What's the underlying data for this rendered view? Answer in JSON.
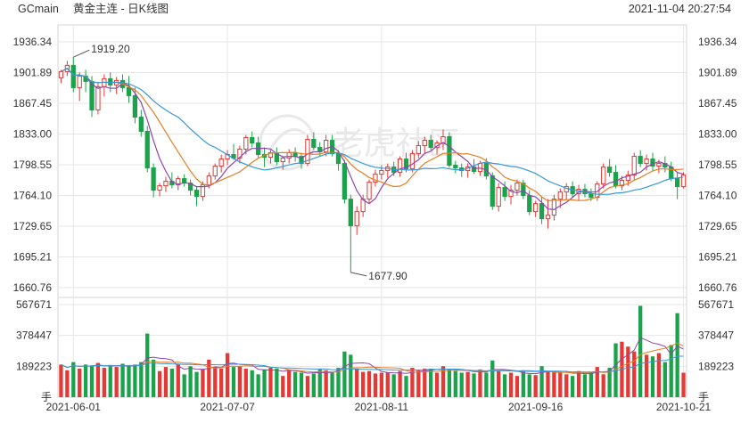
{
  "header": {
    "symbol": "GCmain",
    "title": "黄金主连 - 日K线图",
    "timestamp": "2021-11-04 20:27:54"
  },
  "watermark": "老虎社区",
  "colors": {
    "up": "#e53935",
    "down": "#1aa34a",
    "ma5": "#8e44ad",
    "ma10": "#e67e22",
    "ma20": "#3498db",
    "axis_text": "#333333",
    "grid": "#e6e6e6"
  },
  "chart_data": [
    {
      "type": "candlestick",
      "yaxis_labels": [
        "1936.34",
        "1901.89",
        "1867.45",
        "1833.00",
        "1798.55",
        "1764.10",
        "1729.65",
        "1695.21",
        "1660.76"
      ],
      "ylim": [
        1660.76,
        1936.34
      ],
      "annotations": {
        "high_label": "1919.20",
        "low_label": "1677.90"
      },
      "x_tick_labels": [
        "2021-06-01",
        "2021-07-07",
        "2021-08-11",
        "2021-09-16",
        "2021-10-21"
      ],
      "moving_averages": [
        "MA5",
        "MA10",
        "MA20"
      ],
      "ohlc": [
        [
          1896,
          1905,
          1890,
          1903
        ],
        [
          1903,
          1915,
          1898,
          1910
        ],
        [
          1910,
          1919.2,
          1880,
          1885
        ],
        [
          1885,
          1902,
          1870,
          1898
        ],
        [
          1898,
          1905,
          1880,
          1892
        ],
        [
          1892,
          1898,
          1852,
          1860
        ],
        [
          1860,
          1890,
          1855,
          1886
        ],
        [
          1886,
          1900,
          1875,
          1895
        ],
        [
          1895,
          1902,
          1880,
          1888
        ],
        [
          1888,
          1897,
          1878,
          1893
        ],
        [
          1893,
          1900,
          1880,
          1885
        ],
        [
          1885,
          1898,
          1868,
          1876
        ],
        [
          1876,
          1885,
          1845,
          1852
        ],
        [
          1852,
          1860,
          1830,
          1836
        ],
        [
          1836,
          1842,
          1790,
          1795
        ],
        [
          1795,
          1800,
          1762,
          1770
        ],
        [
          1770,
          1778,
          1763,
          1775
        ],
        [
          1775,
          1785,
          1768,
          1780
        ],
        [
          1780,
          1790,
          1772,
          1776
        ],
        [
          1776,
          1786,
          1770,
          1783
        ],
        [
          1783,
          1788,
          1774,
          1778
        ],
        [
          1778,
          1782,
          1764,
          1770
        ],
        [
          1770,
          1774,
          1752,
          1763
        ],
        [
          1763,
          1780,
          1758,
          1776
        ],
        [
          1776,
          1790,
          1772,
          1786
        ],
        [
          1786,
          1800,
          1782,
          1797
        ],
        [
          1797,
          1810,
          1790,
          1805
        ],
        [
          1805,
          1815,
          1798,
          1810
        ],
        [
          1810,
          1822,
          1804,
          1806
        ],
        [
          1806,
          1820,
          1800,
          1816
        ],
        [
          1816,
          1832,
          1810,
          1829
        ],
        [
          1829,
          1836,
          1818,
          1823
        ],
        [
          1823,
          1830,
          1806,
          1810
        ],
        [
          1810,
          1818,
          1796,
          1807
        ],
        [
          1807,
          1815,
          1800,
          1812
        ],
        [
          1812,
          1818,
          1798,
          1802
        ],
        [
          1802,
          1808,
          1793,
          1806
        ],
        [
          1806,
          1816,
          1800,
          1812
        ],
        [
          1812,
          1818,
          1802,
          1808
        ],
        [
          1808,
          1812,
          1794,
          1800
        ],
        [
          1800,
          1832,
          1797,
          1827
        ],
        [
          1827,
          1835,
          1815,
          1818
        ],
        [
          1818,
          1824,
          1808,
          1813
        ],
        [
          1813,
          1832,
          1808,
          1826
        ],
        [
          1826,
          1832,
          1808,
          1811
        ],
        [
          1811,
          1815,
          1792,
          1800
        ],
        [
          1800,
          1804,
          1755,
          1760
        ],
        [
          1760,
          1765,
          1677.9,
          1730
        ],
        [
          1730,
          1752,
          1720,
          1746
        ],
        [
          1746,
          1765,
          1740,
          1760
        ],
        [
          1760,
          1782,
          1756,
          1779
        ],
        [
          1779,
          1793,
          1774,
          1788
        ],
        [
          1788,
          1798,
          1782,
          1792
        ],
        [
          1792,
          1800,
          1784,
          1796
        ],
        [
          1796,
          1802,
          1786,
          1790
        ],
        [
          1790,
          1808,
          1785,
          1805
        ],
        [
          1805,
          1812,
          1790,
          1794
        ],
        [
          1794,
          1815,
          1790,
          1811
        ],
        [
          1811,
          1825,
          1806,
          1820
        ],
        [
          1820,
          1830,
          1812,
          1826
        ],
        [
          1826,
          1832,
          1815,
          1818
        ],
        [
          1818,
          1826,
          1810,
          1823
        ],
        [
          1823,
          1838,
          1815,
          1830
        ],
        [
          1830,
          1835,
          1795,
          1798
        ],
        [
          1798,
          1803,
          1789,
          1795
        ],
        [
          1795,
          1800,
          1785,
          1792
        ],
        [
          1792,
          1800,
          1784,
          1796
        ],
        [
          1796,
          1805,
          1788,
          1791
        ],
        [
          1791,
          1803,
          1786,
          1800
        ],
        [
          1800,
          1806,
          1782,
          1786
        ],
        [
          1786,
          1790,
          1748,
          1752
        ],
        [
          1752,
          1778,
          1746,
          1773
        ],
        [
          1773,
          1780,
          1758,
          1763
        ],
        [
          1763,
          1776,
          1754,
          1770
        ],
        [
          1770,
          1782,
          1764,
          1778
        ],
        [
          1778,
          1782,
          1760,
          1764
        ],
        [
          1764,
          1770,
          1742,
          1746
        ],
        [
          1746,
          1758,
          1740,
          1755
        ],
        [
          1755,
          1762,
          1732,
          1738
        ],
        [
          1738,
          1760,
          1727,
          1742
        ],
        [
          1742,
          1765,
          1736,
          1760
        ],
        [
          1760,
          1772,
          1750,
          1768
        ],
        [
          1768,
          1778,
          1760,
          1774
        ],
        [
          1774,
          1780,
          1762,
          1766
        ],
        [
          1766,
          1776,
          1758,
          1771
        ],
        [
          1771,
          1777,
          1762,
          1766
        ],
        [
          1766,
          1772,
          1758,
          1762
        ],
        [
          1762,
          1780,
          1758,
          1777
        ],
        [
          1777,
          1800,
          1772,
          1796
        ],
        [
          1796,
          1805,
          1785,
          1790
        ],
        [
          1790,
          1798,
          1772,
          1775
        ],
        [
          1775,
          1786,
          1770,
          1781
        ],
        [
          1781,
          1792,
          1775,
          1787
        ],
        [
          1787,
          1812,
          1782,
          1808
        ],
        [
          1808,
          1815,
          1796,
          1800
        ],
        [
          1800,
          1810,
          1792,
          1805
        ],
        [
          1805,
          1812,
          1792,
          1797
        ],
        [
          1797,
          1804,
          1789,
          1800
        ],
        [
          1800,
          1808,
          1790,
          1796
        ],
        [
          1796,
          1802,
          1780,
          1783
        ],
        [
          1783,
          1790,
          1760,
          1774
        ],
        [
          1774,
          1790,
          1772,
          1787
        ]
      ],
      "volume": {
        "yaxis_labels": [
          "567671",
          "378447",
          "189223",
          "手"
        ],
        "ylim": [
          0,
          567671
        ],
        "bars": [
          200000,
          165000,
          215000,
          175000,
          200000,
          195000,
          210000,
          180000,
          190000,
          185000,
          205000,
          190000,
          200000,
          215000,
          390000,
          230000,
          160000,
          185000,
          175000,
          200000,
          140000,
          190000,
          155000,
          170000,
          230000,
          185000,
          175000,
          270000,
          185000,
          190000,
          175000,
          165000,
          140000,
          170000,
          180000,
          175000,
          130000,
          170000,
          155000,
          150000,
          130000,
          145000,
          170000,
          165000,
          150000,
          180000,
          280000,
          260000,
          175000,
          155000,
          160000,
          145000,
          150000,
          150000,
          140000,
          160000,
          130000,
          180000,
          165000,
          175000,
          175000,
          150000,
          190000,
          170000,
          160000,
          150000,
          155000,
          145000,
          170000,
          150000,
          225000,
          160000,
          140000,
          150000,
          130000,
          165000,
          140000,
          135000,
          190000,
          155000,
          160000,
          150000,
          140000,
          130000,
          160000,
          140000,
          150000,
          185000,
          140000,
          180000,
          330000,
          340000,
          310000,
          280000,
          560000,
          260000,
          250000,
          270000,
          215000,
          320000,
          515000,
          150000
        ]
      }
    }
  ]
}
